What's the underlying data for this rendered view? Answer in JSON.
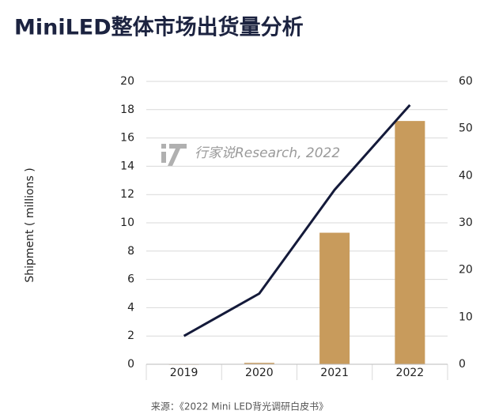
{
  "chart_data": {
    "type": "bar_line",
    "title": "MiniLED整体市场出货量分析",
    "y_label": "Shipment ( millions )",
    "watermark": "行家说Research, 2022",
    "source": "来源：《2022 Mini LED背光调研白皮书》",
    "categories": [
      "2019",
      "2020",
      "2021",
      "2022"
    ],
    "series": [
      {
        "type": "bar",
        "color": "#c89b5c",
        "values": [
          0.02,
          0.1,
          9.3,
          17.2
        ]
      },
      {
        "type": "line",
        "color": "#141a3a",
        "axis": "y2",
        "values": [
          6,
          15,
          37,
          55
        ]
      }
    ],
    "ylim": [
      0,
      20
    ],
    "yticks": [
      0,
      2,
      4,
      6,
      8,
      10,
      12,
      14,
      16,
      18,
      20
    ],
    "y2lim": [
      0,
      60
    ],
    "y2ticks": [
      0,
      10,
      20,
      30,
      40,
      50,
      60
    ],
    "grid": true
  }
}
